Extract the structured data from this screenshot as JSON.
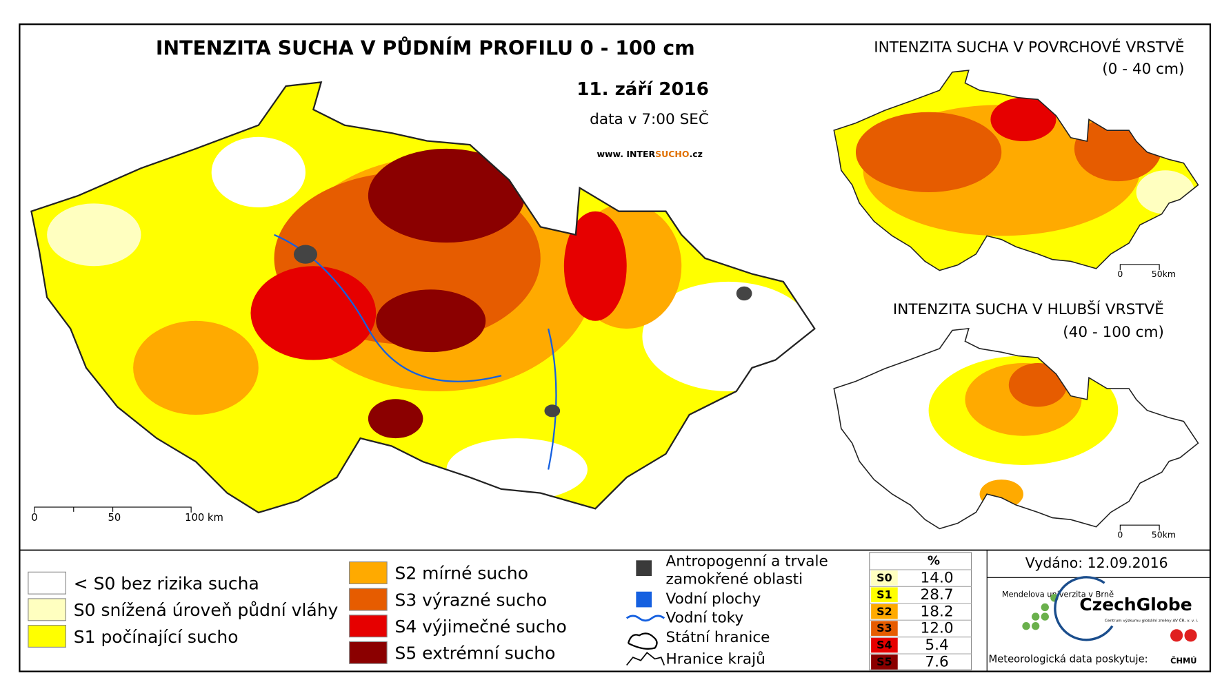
{
  "main_map": {
    "title": "INTENZITA SUCHA V PŮDNÍM PROFILU 0 - 100 cm",
    "date": "11. září 2016",
    "time": "data v 7:00 SEČ",
    "website_prefix": "www. INTER",
    "website_highlight": "SUCHO",
    "website_suffix": ".cz",
    "scale": [
      "0",
      "50",
      "100 km"
    ]
  },
  "surface_map": {
    "title": "INTENZITA SUCHA V POVRCHOVÉ VRSTVĚ",
    "subtitle": "(0 - 40 cm)",
    "scale": [
      "0",
      "50km"
    ]
  },
  "deep_map": {
    "title": "INTENZITA SUCHA V HLUBŠÍ VRSTVĚ",
    "subtitle": "(40 - 100 cm)",
    "scale": [
      "0",
      "50km"
    ]
  },
  "legend": {
    "categories": [
      {
        "label": "< S0 bez rizika sucha",
        "color": "#ffffff"
      },
      {
        "label": "S0 snížená úroveň půdní vláhy",
        "color": "#ffffc0"
      },
      {
        "label": "S1 počínající sucho",
        "color": "#ffff00"
      },
      {
        "label": "S2 mírné sucho",
        "color": "#ffaa00"
      },
      {
        "label": "S3 výrazné sucho",
        "color": "#e65c00"
      },
      {
        "label": "S4 výjimečné sucho",
        "color": "#e60000"
      },
      {
        "label": "S5 extrémní sucho",
        "color": "#8b0000"
      }
    ],
    "features": [
      "Antropogenní a trvale zamokřené oblasti",
      "Vodní plochy",
      "Vodní toky",
      "Státní hranice",
      "Hranice krajů"
    ]
  },
  "stats_table": {
    "header": "%",
    "rows": [
      [
        "S0",
        "14.0"
      ],
      [
        "S1",
        "28.7"
      ],
      [
        "S2",
        "18.2"
      ],
      [
        "S3",
        "12.0"
      ],
      [
        "S4",
        "5.4"
      ],
      [
        "S5",
        "7.6"
      ]
    ]
  },
  "issued": "Vydáno: 12.09.2016",
  "logos": {
    "mendelu": "Mendelova univerzita v Brně",
    "czechglobe": "CzechGlobe",
    "czechglobe_sub": "Centrum výzkumu globální změny AV ČR, v. v. i.",
    "provider": "Meteorologická data poskytuje:",
    "chmu": "ČHMÚ"
  }
}
